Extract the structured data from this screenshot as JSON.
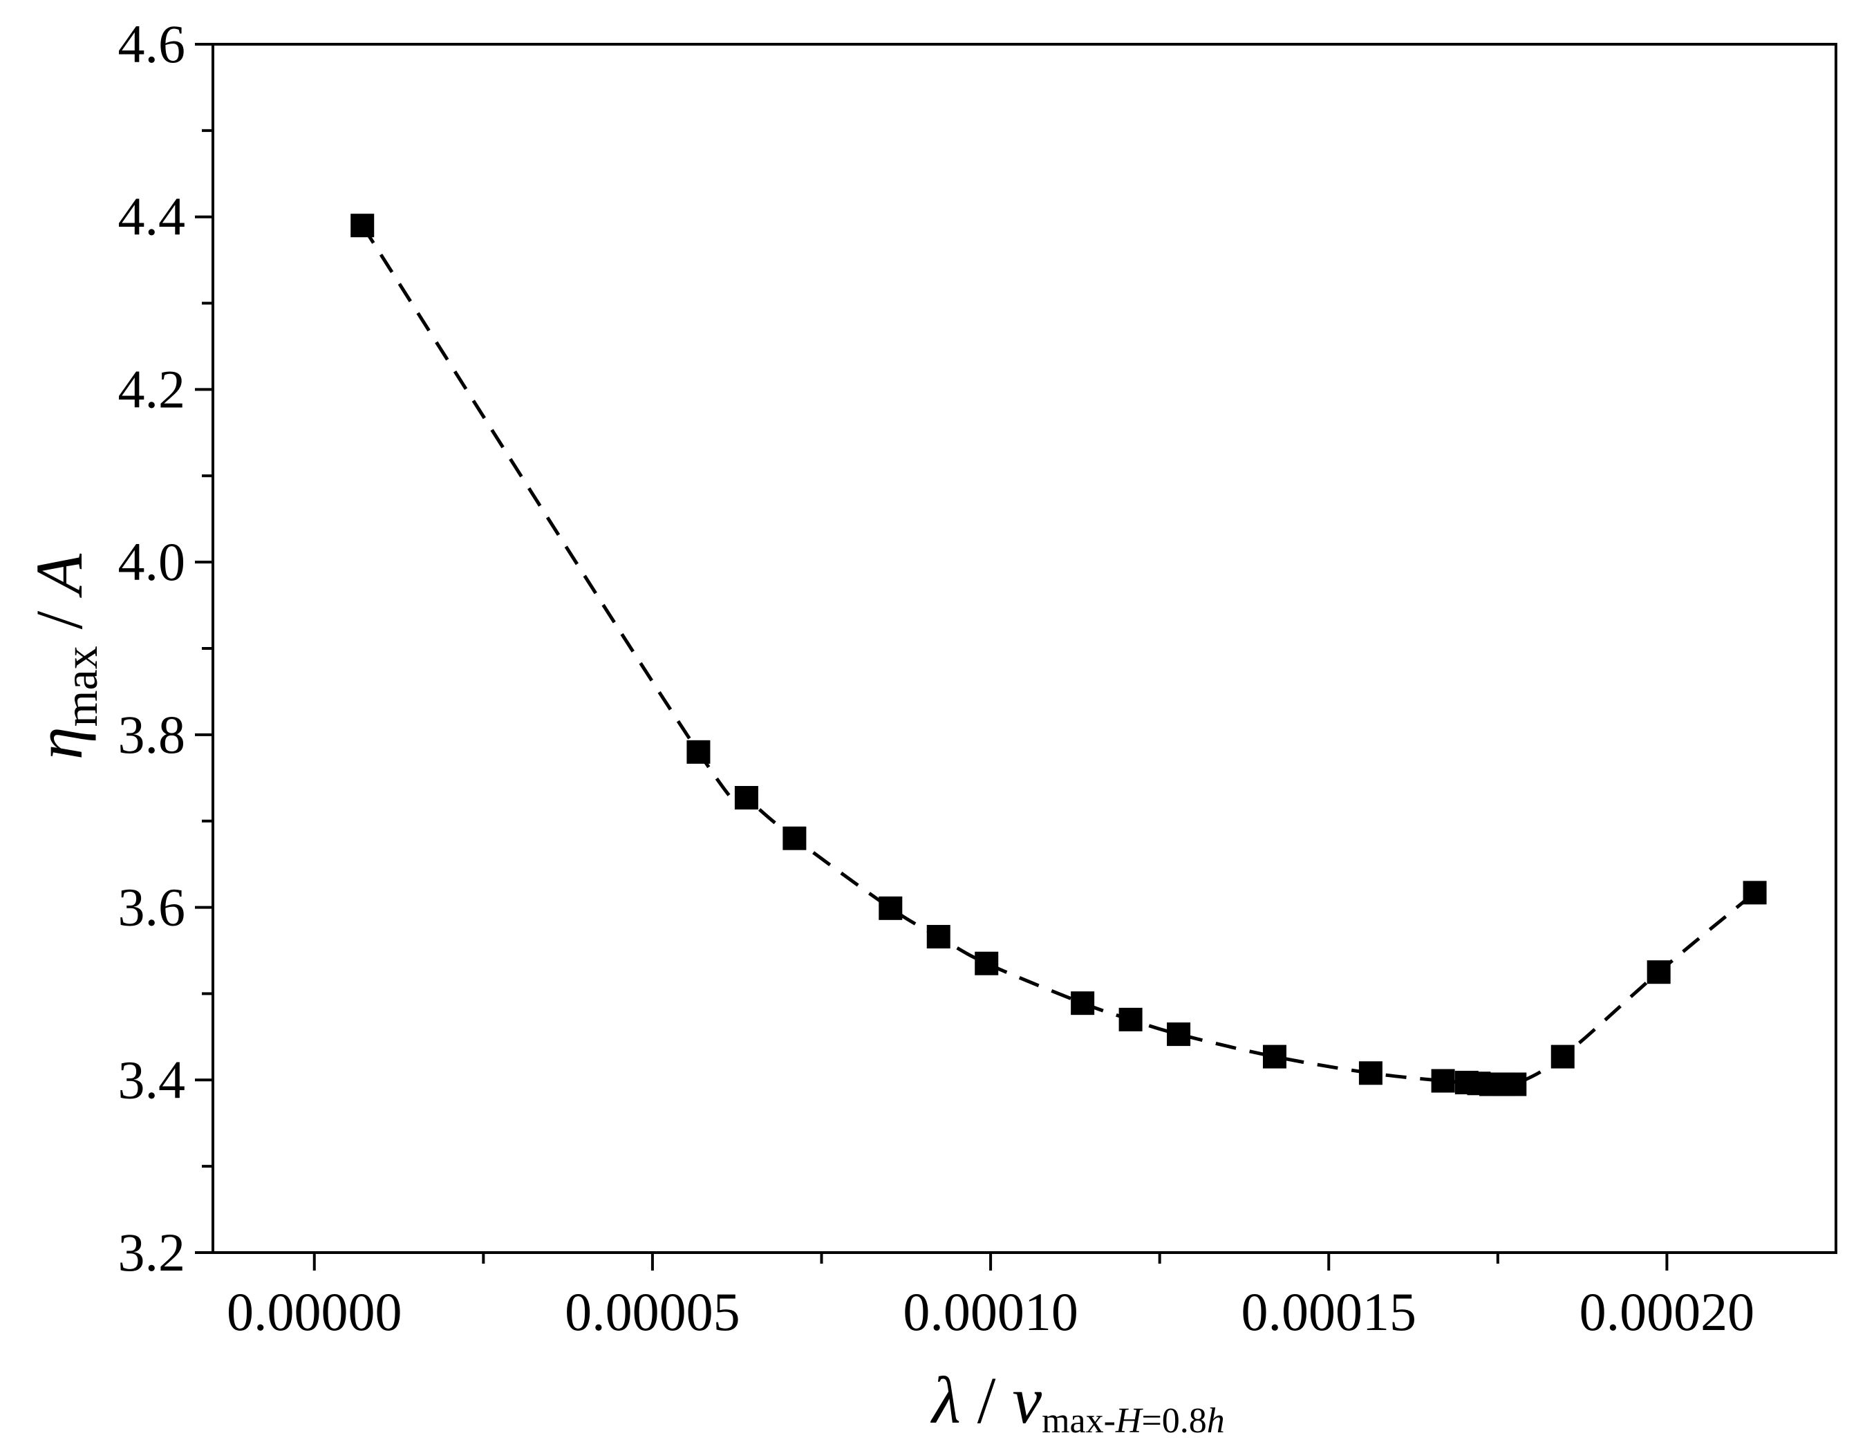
{
  "chart_data": {
    "type": "scatter",
    "title": "",
    "xlabel": {
      "symbol": "λ",
      "separator": " / ",
      "quantity": "v",
      "subscript_upright": "max-",
      "subscript_italic_1": "H",
      "subscript_upright_2": "=0.8",
      "subscript_italic_2": "h"
    },
    "ylabel": {
      "symbol": "η",
      "subscript": "max",
      "separator": " / ",
      "unit": "A"
    },
    "xlim": [
      -1.5e-05,
      0.000225
    ],
    "ylim": [
      3.2,
      4.6
    ],
    "x_ticks": [
      {
        "value": 0.0,
        "label": "0.00000"
      },
      {
        "value": 5e-05,
        "label": "0.00005"
      },
      {
        "value": 0.0001,
        "label": "0.00010"
      },
      {
        "value": 0.00015,
        "label": "0.00015"
      },
      {
        "value": 0.0002,
        "label": "0.00020"
      }
    ],
    "x_minor_ticks": [
      2.5e-05,
      7.5e-05,
      0.000125,
      0.000175
    ],
    "y_ticks": [
      {
        "value": 3.2,
        "label": "3.2"
      },
      {
        "value": 3.4,
        "label": "3.4"
      },
      {
        "value": 3.6,
        "label": "3.6"
      },
      {
        "value": 3.8,
        "label": "3.8"
      },
      {
        "value": 4.0,
        "label": "4.0"
      },
      {
        "value": 4.2,
        "label": "4.2"
      },
      {
        "value": 4.4,
        "label": "4.4"
      },
      {
        "value": 4.6,
        "label": "4.6"
      }
    ],
    "y_minor_ticks": [
      3.3,
      3.5,
      3.7,
      3.9,
      4.1,
      4.3,
      4.5
    ],
    "grid": false,
    "legend": "none",
    "series": [
      {
        "marker": "square",
        "line_style": "dashed",
        "color": "#000000",
        "x": [
          7.1e-06,
          5.68e-05,
          6.39e-05,
          7.1e-05,
          8.52e-05,
          9.23e-05,
          9.94e-05,
          0.0001136,
          0.0001207,
          0.0001278,
          0.000142,
          0.0001562,
          0.0001669,
          0.0001704,
          0.0001722,
          0.000174,
          0.0001757,
          0.0001775,
          0.0001846,
          0.0001988,
          0.000213
        ],
        "y": [
          4.39,
          3.78,
          3.727,
          3.68,
          3.599,
          3.566,
          3.535,
          3.489,
          3.47,
          3.453,
          3.427,
          3.408,
          3.399,
          3.397,
          3.396,
          3.395,
          3.395,
          3.395,
          3.427,
          3.525,
          3.617
        ]
      }
    ]
  }
}
